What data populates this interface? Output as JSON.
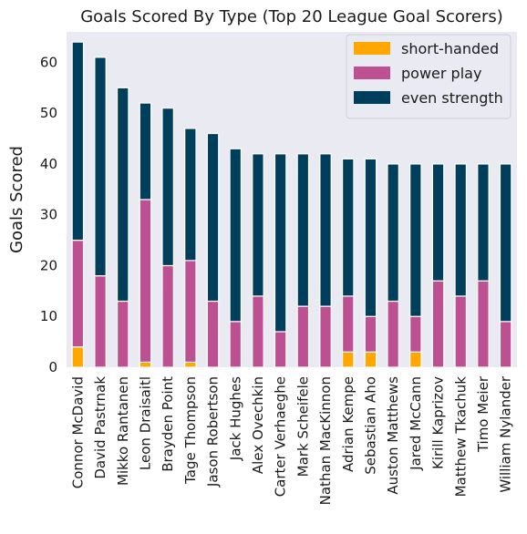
{
  "chart_data": {
    "type": "bar",
    "stacked": true,
    "title": "Goals Scored By Type (Top 20 League Goal Scorers)",
    "xlabel": "",
    "ylabel": "Goals Scored",
    "ylim": [
      0,
      66
    ],
    "yticks": [
      0,
      10,
      20,
      30,
      40,
      50,
      60
    ],
    "grid": false,
    "legend_position": "top-right",
    "categories": [
      "Connor McDavid",
      "David Pastrnak",
      "Mikko Rantanen",
      "Leon Draisaitl",
      "Brayden Point",
      "Tage Thompson",
      "Jason Robertson",
      "Jack Hughes",
      "Alex Ovechkin",
      "Carter Verhaeghe",
      "Mark Scheifele",
      "Nathan MacKinnon",
      "Adrian Kempe",
      "Sebastian Aho",
      "Auston Matthews",
      "Jared McCann",
      "Kirill Kaprizov",
      "Matthew Tkachuk",
      "Timo Meier",
      "William Nylander"
    ],
    "series": [
      {
        "name": "short-handed",
        "color": "#ffa600",
        "values": [
          4,
          0,
          0,
          1,
          0,
          1,
          0,
          0,
          0,
          0,
          0,
          0,
          3,
          3,
          0,
          3,
          0,
          0,
          0,
          0
        ]
      },
      {
        "name": "power play",
        "color": "#bc5090",
        "values": [
          21,
          18,
          13,
          32,
          20,
          20,
          13,
          9,
          14,
          7,
          12,
          12,
          11,
          7,
          13,
          7,
          17,
          14,
          17,
          9
        ]
      },
      {
        "name": "even strength",
        "color": "#003f5c",
        "values": [
          39,
          43,
          42,
          19,
          31,
          26,
          33,
          34,
          28,
          35,
          30,
          30,
          27,
          31,
          27,
          30,
          23,
          26,
          23,
          31
        ]
      }
    ]
  }
}
